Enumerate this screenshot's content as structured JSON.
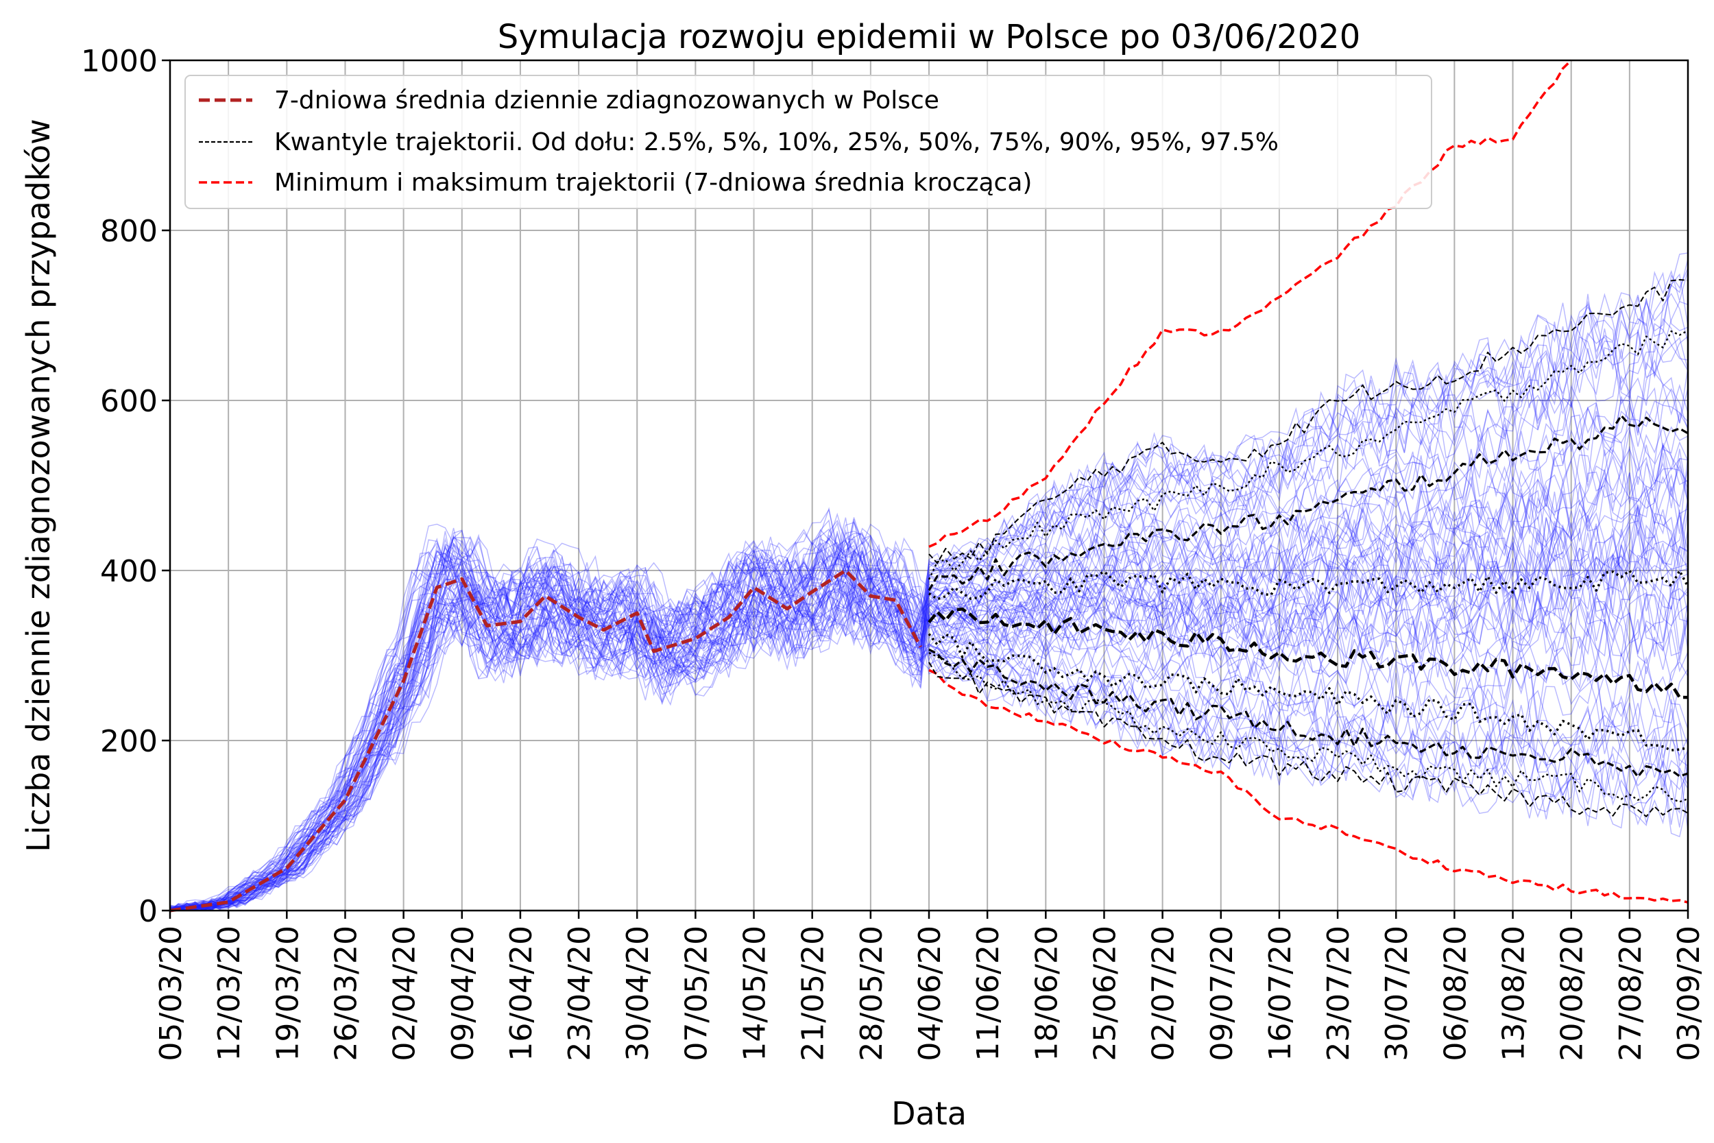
{
  "chart_data": {
    "type": "line",
    "title": "Symulacja rozwoju epidemii w Polsce po 03/06/2020",
    "xlabel": "Data",
    "ylabel": "Liczba dziennie zdiagnozowanych przypadków",
    "ylim": [
      0,
      1000
    ],
    "yticks": [
      0,
      200,
      400,
      600,
      800,
      1000
    ],
    "grid": true,
    "legend_position": "top-left",
    "x_start": "05/03/20",
    "x_end": "03/09/20",
    "simulation_start": "04/06/20",
    "x_tick_labels": [
      "05/03/20",
      "12/03/20",
      "19/03/20",
      "26/03/20",
      "02/04/20",
      "09/04/20",
      "16/04/20",
      "23/04/20",
      "30/04/20",
      "07/05/20",
      "14/05/20",
      "21/05/20",
      "28/05/20",
      "04/06/20",
      "11/06/20",
      "18/06/20",
      "25/06/20",
      "02/07/20",
      "09/07/20",
      "16/07/20",
      "23/07/20",
      "30/07/20",
      "06/08/20",
      "13/08/20",
      "20/08/20",
      "27/08/20",
      "03/09/20"
    ],
    "legend": [
      {
        "label": "7-dniowa średnia dziennie zdiagnozowanych w Polsce",
        "color": "#b22222",
        "style": "dashed-thick"
      },
      {
        "label": "Kwantyle trajektorii. Od dołu: 2.5%, 5%, 10%, 25%, 50%, 75%, 90%, 95%, 97.5%",
        "color": "#000000",
        "style": "dashed-thin"
      },
      {
        "label": "Minimum i maksimum trajektorii (7-dniowa średnia krocząca)",
        "color": "#ff0000",
        "style": "dashed"
      }
    ],
    "series": [
      {
        "name": "7-dniowa średnia dziennie zdiagnozowanych w Polsce",
        "color": "#b22222",
        "points": [
          [
            "05/03/20",
            0
          ],
          [
            "12/03/20",
            10
          ],
          [
            "19/03/20",
            50
          ],
          [
            "26/03/20",
            130
          ],
          [
            "02/04/20",
            270
          ],
          [
            "06/04/20",
            380
          ],
          [
            "09/04/20",
            390
          ],
          [
            "12/04/20",
            335
          ],
          [
            "16/04/20",
            340
          ],
          [
            "19/04/20",
            370
          ],
          [
            "23/04/20",
            345
          ],
          [
            "26/04/20",
            330
          ],
          [
            "30/04/20",
            350
          ],
          [
            "02/05/20",
            305
          ],
          [
            "07/05/20",
            320
          ],
          [
            "11/05/20",
            345
          ],
          [
            "14/05/20",
            380
          ],
          [
            "18/05/20",
            355
          ],
          [
            "21/05/20",
            375
          ],
          [
            "25/05/20",
            400
          ],
          [
            "28/05/20",
            370
          ],
          [
            "31/05/20",
            365
          ],
          [
            "03/06/20",
            310
          ]
        ]
      },
      {
        "name": "Maksimum trajektorii",
        "color": "#ff0000",
        "points": [
          [
            "04/06/20",
            430
          ],
          [
            "11/06/20",
            460
          ],
          [
            "18/06/20",
            510
          ],
          [
            "25/06/20",
            600
          ],
          [
            "02/07/20",
            680
          ],
          [
            "09/07/20",
            680
          ],
          [
            "16/07/20",
            720
          ],
          [
            "23/07/20",
            770
          ],
          [
            "30/07/20",
            830
          ],
          [
            "06/08/20",
            900
          ],
          [
            "13/08/20",
            910
          ],
          [
            "20/08/20",
            1000
          ]
        ]
      },
      {
        "name": "Minimum trajektorii",
        "color": "#ff0000",
        "points": [
          [
            "04/06/20",
            280
          ],
          [
            "11/06/20",
            240
          ],
          [
            "18/06/20",
            225
          ],
          [
            "25/06/20",
            200
          ],
          [
            "02/07/20",
            180
          ],
          [
            "09/07/20",
            160
          ],
          [
            "16/07/20",
            110
          ],
          [
            "23/07/20",
            95
          ],
          [
            "30/07/20",
            70
          ],
          [
            "06/08/20",
            50
          ],
          [
            "13/08/20",
            35
          ],
          [
            "20/08/20",
            25
          ],
          [
            "27/08/20",
            15
          ],
          [
            "03/09/20",
            10
          ]
        ]
      },
      {
        "name": "97.5%",
        "color": "#000000",
        "points": [
          [
            "04/06/20",
            410
          ],
          [
            "11/06/20",
            430
          ],
          [
            "18/06/20",
            480
          ],
          [
            "25/06/20",
            520
          ],
          [
            "02/07/20",
            540
          ],
          [
            "09/07/20",
            530
          ],
          [
            "16/07/20",
            550
          ],
          [
            "23/07/20",
            600
          ],
          [
            "30/07/20",
            620
          ],
          [
            "06/08/20",
            630
          ],
          [
            "13/08/20",
            660
          ],
          [
            "20/08/20",
            690
          ],
          [
            "27/08/20",
            710
          ],
          [
            "03/09/20",
            740
          ]
        ]
      },
      {
        "name": "95%",
        "color": "#000000",
        "points": [
          [
            "04/06/20",
            400
          ],
          [
            "11/06/20",
            420
          ],
          [
            "18/06/20",
            450
          ],
          [
            "25/06/20",
            470
          ],
          [
            "02/07/20",
            480
          ],
          [
            "09/07/20",
            500
          ],
          [
            "16/07/20",
            520
          ],
          [
            "23/07/20",
            540
          ],
          [
            "30/07/20",
            560
          ],
          [
            "06/08/20",
            590
          ],
          [
            "13/08/20",
            610
          ],
          [
            "20/08/20",
            640
          ],
          [
            "27/08/20",
            660
          ],
          [
            "03/09/20",
            680
          ]
        ]
      },
      {
        "name": "90%",
        "color": "#000000",
        "points": [
          [
            "04/06/20",
            385
          ],
          [
            "11/06/20",
            400
          ],
          [
            "18/06/20",
            415
          ],
          [
            "25/06/20",
            435
          ],
          [
            "02/07/20",
            440
          ],
          [
            "09/07/20",
            450
          ],
          [
            "16/07/20",
            460
          ],
          [
            "23/07/20",
            480
          ],
          [
            "30/07/20",
            500
          ],
          [
            "06/08/20",
            515
          ],
          [
            "13/08/20",
            540
          ],
          [
            "20/08/20",
            550
          ],
          [
            "27/08/20",
            575
          ],
          [
            "03/09/20",
            570
          ]
        ]
      },
      {
        "name": "75%",
        "color": "#000000",
        "points": [
          [
            "04/06/20",
            370
          ],
          [
            "11/06/20",
            380
          ],
          [
            "18/06/20",
            380
          ],
          [
            "25/06/20",
            390
          ],
          [
            "02/07/20",
            385
          ],
          [
            "09/07/20",
            385
          ],
          [
            "16/07/20",
            380
          ],
          [
            "23/07/20",
            385
          ],
          [
            "30/07/20",
            380
          ],
          [
            "06/08/20",
            385
          ],
          [
            "13/08/20",
            380
          ],
          [
            "20/08/20",
            385
          ],
          [
            "27/08/20",
            390
          ],
          [
            "03/09/20",
            390
          ]
        ]
      },
      {
        "name": "50%",
        "color": "#000000",
        "points": [
          [
            "04/06/20",
            350
          ],
          [
            "11/06/20",
            340
          ],
          [
            "18/06/20",
            335
          ],
          [
            "25/06/20",
            330
          ],
          [
            "02/07/20",
            320
          ],
          [
            "09/07/20",
            315
          ],
          [
            "16/07/20",
            305
          ],
          [
            "23/07/20",
            295
          ],
          [
            "30/07/20",
            295
          ],
          [
            "06/08/20",
            285
          ],
          [
            "13/08/20",
            285
          ],
          [
            "20/08/20",
            280
          ],
          [
            "27/08/20",
            270
          ],
          [
            "03/09/20",
            260
          ]
        ]
      },
      {
        "name": "25%",
        "color": "#000000",
        "points": [
          [
            "04/06/20",
            320
          ],
          [
            "11/06/20",
            300
          ],
          [
            "18/06/20",
            290
          ],
          [
            "25/06/20",
            275
          ],
          [
            "02/07/20",
            270
          ],
          [
            "09/07/20",
            265
          ],
          [
            "16/07/20",
            255
          ],
          [
            "23/07/20",
            250
          ],
          [
            "30/07/20",
            240
          ],
          [
            "06/08/20",
            235
          ],
          [
            "13/08/20",
            225
          ],
          [
            "20/08/20",
            215
          ],
          [
            "27/08/20",
            205
          ],
          [
            "03/09/20",
            195
          ]
        ]
      },
      {
        "name": "10%",
        "color": "#000000",
        "points": [
          [
            "04/06/20",
            305
          ],
          [
            "11/06/20",
            285
          ],
          [
            "18/06/20",
            265
          ],
          [
            "25/06/20",
            250
          ],
          [
            "02/07/20",
            240
          ],
          [
            "09/07/20",
            230
          ],
          [
            "16/07/20",
            220
          ],
          [
            "23/07/20",
            205
          ],
          [
            "30/07/20",
            200
          ],
          [
            "06/08/20",
            190
          ],
          [
            "13/08/20",
            185
          ],
          [
            "20/08/20",
            180
          ],
          [
            "27/08/20",
            165
          ],
          [
            "03/09/20",
            155
          ]
        ]
      },
      {
        "name": "5%",
        "color": "#000000",
        "points": [
          [
            "04/06/20",
            295
          ],
          [
            "11/06/20",
            270
          ],
          [
            "18/06/20",
            250
          ],
          [
            "25/06/20",
            235
          ],
          [
            "02/07/20",
            215
          ],
          [
            "09/07/20",
            200
          ],
          [
            "16/07/20",
            190
          ],
          [
            "23/07/20",
            180
          ],
          [
            "30/07/20",
            170
          ],
          [
            "06/08/20",
            160
          ],
          [
            "13/08/20",
            155
          ],
          [
            "20/08/20",
            150
          ],
          [
            "27/08/20",
            140
          ],
          [
            "03/09/20",
            135
          ]
        ]
      },
      {
        "name": "2.5%",
        "color": "#000000",
        "points": [
          [
            "04/06/20",
            290
          ],
          [
            "11/06/20",
            260
          ],
          [
            "18/06/20",
            240
          ],
          [
            "25/06/20",
            220
          ],
          [
            "02/07/20",
            200
          ],
          [
            "09/07/20",
            180
          ],
          [
            "16/07/20",
            170
          ],
          [
            "23/07/20",
            160
          ],
          [
            "30/07/20",
            150
          ],
          [
            "06/08/20",
            145
          ],
          [
            "13/08/20",
            135
          ],
          [
            "20/08/20",
            125
          ],
          [
            "27/08/20",
            120
          ],
          [
            "03/09/20",
            110
          ]
        ]
      }
    ]
  }
}
